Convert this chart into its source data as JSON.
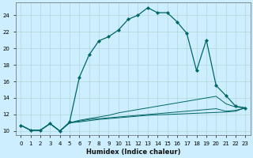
{
  "xlabel": "Humidex (Indice chaleur)",
  "bg_color": "#cceeff",
  "grid_color": "#b0d8d8",
  "line_color": "#006666",
  "xlim": [
    -0.5,
    23.5
  ],
  "ylim": [
    9.5,
    25.5
  ],
  "ytick_values": [
    10,
    12,
    14,
    16,
    18,
    20,
    22,
    24
  ],
  "curve_main_x": [
    0,
    1,
    2,
    3,
    4,
    5,
    6,
    7,
    8,
    9,
    10,
    11,
    12,
    13,
    14,
    15,
    16,
    17,
    18,
    19,
    20,
    21,
    22,
    23
  ],
  "curve_main_y": [
    10.7,
    10.1,
    10.1,
    10.9,
    10.0,
    11.1,
    16.5,
    19.2,
    20.9,
    21.4,
    22.2,
    23.5,
    24.0,
    24.9,
    24.3,
    24.3,
    23.2,
    21.8,
    17.3,
    21.0,
    15.5,
    14.3,
    13.0,
    12.8
  ],
  "line1_x": [
    0,
    1,
    2,
    3,
    4,
    5,
    6,
    7,
    8,
    9,
    10,
    11,
    12,
    13,
    14,
    15,
    16,
    17,
    18,
    19,
    20,
    21,
    22,
    23
  ],
  "line1_y": [
    10.7,
    10.1,
    10.1,
    10.9,
    10.0,
    11.0,
    11.3,
    11.5,
    11.7,
    11.9,
    12.2,
    12.4,
    12.6,
    12.8,
    13.0,
    13.2,
    13.4,
    13.6,
    13.8,
    14.0,
    14.2,
    13.3,
    12.9,
    12.8
  ],
  "line2_x": [
    0,
    1,
    2,
    3,
    4,
    5,
    6,
    7,
    8,
    9,
    10,
    11,
    12,
    13,
    14,
    15,
    16,
    17,
    18,
    19,
    20,
    21,
    22,
    23
  ],
  "line2_y": [
    10.7,
    10.1,
    10.1,
    10.9,
    10.0,
    11.0,
    11.2,
    11.4,
    11.5,
    11.6,
    11.7,
    11.8,
    11.9,
    12.0,
    12.1,
    12.2,
    12.3,
    12.4,
    12.5,
    12.6,
    12.7,
    12.4,
    12.5,
    12.8
  ],
  "line3_x": [
    0,
    1,
    2,
    3,
    4,
    5,
    6,
    7,
    8,
    9,
    10,
    11,
    12,
    13,
    14,
    15,
    16,
    17,
    18,
    19,
    20,
    21,
    22,
    23
  ],
  "line3_y": [
    10.7,
    10.1,
    10.1,
    10.9,
    10.0,
    11.0,
    11.1,
    11.25,
    11.4,
    11.5,
    11.6,
    11.7,
    11.8,
    11.9,
    11.95,
    12.0,
    12.05,
    12.1,
    12.15,
    12.2,
    12.25,
    12.3,
    12.4,
    12.8
  ]
}
